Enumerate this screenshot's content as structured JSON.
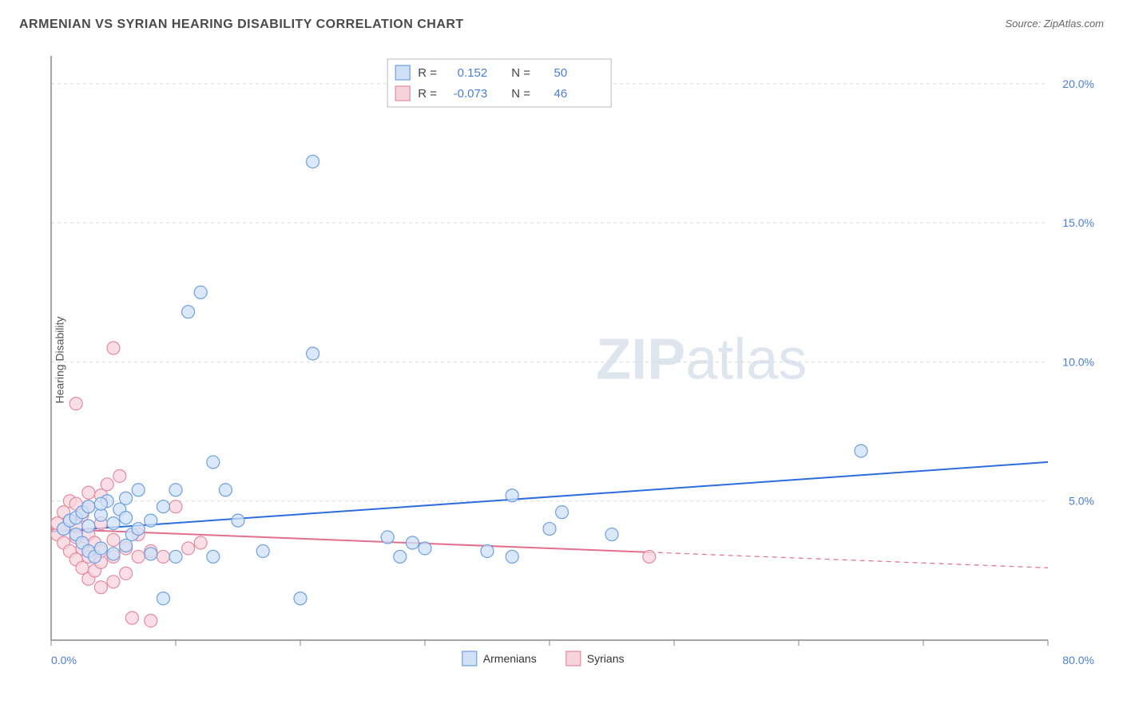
{
  "title": "ARMENIAN VS SYRIAN HEARING DISABILITY CORRELATION CHART",
  "source_label": "Source: ZipAtlas.com",
  "y_axis_label": "Hearing Disability",
  "watermark": {
    "bold": "ZIP",
    "light": "atlas"
  },
  "chart": {
    "type": "scatter",
    "xlim": [
      0,
      80
    ],
    "ylim": [
      0,
      21
    ],
    "x_ticks": [
      0,
      10,
      20,
      30,
      40,
      50,
      60,
      70,
      80
    ],
    "x_tick_labels": {
      "0": "0.0%",
      "80": "80.0%"
    },
    "y_ticks": [
      5,
      10,
      15,
      20
    ],
    "y_tick_labels": {
      "5": "5.0%",
      "10": "10.0%",
      "15": "15.0%",
      "20": "20.0%"
    },
    "background_color": "#ffffff",
    "grid_color": "#d9d9d9",
    "axis_color": "#888888",
    "label_color": "#4a7dd9"
  },
  "series": {
    "armenians": {
      "label": "Armenians",
      "marker_fill": "#cfe0f7",
      "marker_stroke": "#6b9fe0",
      "marker_radius": 8,
      "line_color": "#2d6cdf",
      "line_width": 2,
      "r_value": "0.152",
      "n_value": "50",
      "trend": {
        "x1": 0,
        "y1": 3.9,
        "x2": 80,
        "y2": 6.4,
        "solid_until_x": 80
      },
      "points": [
        [
          1,
          4.0
        ],
        [
          1.5,
          4.3
        ],
        [
          2,
          3.8
        ],
        [
          2,
          4.4
        ],
        [
          2.5,
          3.5
        ],
        [
          2.5,
          4.6
        ],
        [
          3,
          3.2
        ],
        [
          3,
          4.1
        ],
        [
          3,
          4.8
        ],
        [
          3.5,
          3.0
        ],
        [
          4,
          3.3
        ],
        [
          4,
          4.5
        ],
        [
          4.5,
          5.0
        ],
        [
          5,
          3.1
        ],
        [
          5,
          4.2
        ],
        [
          5.5,
          4.7
        ],
        [
          6,
          3.4
        ],
        [
          6,
          5.1
        ],
        [
          6.5,
          3.8
        ],
        [
          7,
          4.0
        ],
        [
          7,
          5.4
        ],
        [
          8,
          4.3
        ],
        [
          8,
          3.1
        ],
        [
          9,
          4.8
        ],
        [
          9,
          1.5
        ],
        [
          10,
          3.0
        ],
        [
          10,
          5.4
        ],
        [
          11,
          11.8
        ],
        [
          12,
          12.5
        ],
        [
          13,
          6.4
        ],
        [
          13,
          3.0
        ],
        [
          14,
          5.4
        ],
        [
          15,
          4.3
        ],
        [
          17,
          3.2
        ],
        [
          20,
          1.5
        ],
        [
          21,
          10.3
        ],
        [
          21,
          17.2
        ],
        [
          27,
          3.7
        ],
        [
          28,
          3.0
        ],
        [
          29,
          3.5
        ],
        [
          30,
          3.3
        ],
        [
          35,
          3.2
        ],
        [
          37,
          5.2
        ],
        [
          37,
          3.0
        ],
        [
          40,
          4.0
        ],
        [
          41,
          4.6
        ],
        [
          45,
          3.8
        ],
        [
          65,
          6.8
        ],
        [
          4,
          4.9
        ],
        [
          6,
          4.4
        ]
      ]
    },
    "syrians": {
      "label": "Syrians",
      "marker_fill": "#f7d4dc",
      "marker_stroke": "#e58aa0",
      "marker_radius": 8,
      "line_color": "#e26f8e",
      "line_width": 2,
      "r_value": "-0.073",
      "n_value": "46",
      "trend": {
        "x1": 0,
        "y1": 4.0,
        "x2": 80,
        "y2": 2.6,
        "solid_until_x": 48
      },
      "points": [
        [
          0.5,
          3.8
        ],
        [
          0.5,
          4.2
        ],
        [
          1,
          3.5
        ],
        [
          1,
          4.0
        ],
        [
          1,
          4.6
        ],
        [
          1.5,
          3.2
        ],
        [
          1.5,
          4.3
        ],
        [
          1.5,
          5.0
        ],
        [
          2,
          2.9
        ],
        [
          2,
          3.7
        ],
        [
          2,
          4.1
        ],
        [
          2,
          4.9
        ],
        [
          2.5,
          2.6
        ],
        [
          2.5,
          3.3
        ],
        [
          2.5,
          4.5
        ],
        [
          3,
          2.2
        ],
        [
          3,
          3.0
        ],
        [
          3,
          3.8
        ],
        [
          3,
          4.8
        ],
        [
          3.5,
          2.5
        ],
        [
          3.5,
          3.5
        ],
        [
          4,
          1.9
        ],
        [
          4,
          2.8
        ],
        [
          4,
          3.2
        ],
        [
          4,
          4.2
        ],
        [
          4.5,
          5.6
        ],
        [
          5,
          2.1
        ],
        [
          5,
          3.0
        ],
        [
          5,
          3.6
        ],
        [
          5.5,
          5.9
        ],
        [
          6,
          2.4
        ],
        [
          6,
          3.3
        ],
        [
          6.5,
          0.8
        ],
        [
          7,
          3.0
        ],
        [
          7,
          3.8
        ],
        [
          8,
          3.2
        ],
        [
          8,
          0.7
        ],
        [
          9,
          3.0
        ],
        [
          2,
          8.5
        ],
        [
          5,
          10.5
        ],
        [
          12,
          3.5
        ],
        [
          10,
          4.8
        ],
        [
          11,
          3.3
        ],
        [
          4,
          5.2
        ],
        [
          3,
          5.3
        ],
        [
          48,
          3.0
        ]
      ]
    }
  },
  "legend": {
    "r_label": "R =",
    "n_label": "N =",
    "bottom_labels": [
      "Armenians",
      "Syrians"
    ]
  }
}
